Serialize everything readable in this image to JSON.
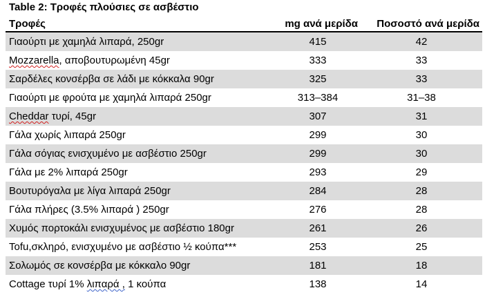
{
  "title": "Table 2: Τροφές πλούσιες σε ασβέστιο",
  "headers": {
    "food": "Τροφές",
    "mg": "mg ανά μερίδα",
    "pct": "Ποσοστό ανά μερίδα"
  },
  "rows": [
    {
      "pre": "Γιαούρτι με χαμηλά λιπαρά, 250gr",
      "mark": "",
      "post": "",
      "mg": "415",
      "pct": "42"
    },
    {
      "pre": "",
      "mark": "Mozzarella",
      "post": ", αποβουτυρωμένη 45gr",
      "mg": "333",
      "pct": "33"
    },
    {
      "pre": "Σαρδέλες κονσέρβα σε λάδι με κόκκαλα  90gr",
      "mark": "",
      "post": "",
      "mg": "325",
      "pct": "33"
    },
    {
      "pre": "Γιαούρτι με φρούτα με χαμηλά λιπαρά 250gr",
      "mark": "",
      "post": "",
      "mg": "313–384",
      "pct": "31–38"
    },
    {
      "pre": "",
      "mark": "Cheddar",
      "post": " τυρί, 45gr",
      "mg": "307",
      "pct": "31"
    },
    {
      "pre": "Γάλα χωρίς λιπαρά 250gr",
      "mark": "",
      "post": "",
      "mg": "299",
      "pct": "30"
    },
    {
      "pre": "Γάλα σόγιας ενισχυμένο με ασβέστιο 250gr",
      "mark": "",
      "post": "",
      "mg": "299",
      "pct": "30"
    },
    {
      "pre": "Γάλα με 2% λιπαρά 250gr",
      "mark": "",
      "post": "",
      "mg": "293",
      "pct": "29"
    },
    {
      "pre": "Βουτυρόγαλα με λίγα λιπαρά 250gr",
      "mark": "",
      "post": "",
      "mg": "284",
      "pct": "28"
    },
    {
      "pre": "Γάλα πλήρες (3.5% λιπαρά ) 250gr",
      "mark": "",
      "post": "",
      "mg": "276",
      "pct": "28"
    },
    {
      "pre": "Χυμός πορτοκάλι ενισχυμένος με ασβέστιο 180gr",
      "mark": "",
      "post": "",
      "mg": "261",
      "pct": "26"
    },
    {
      "pre": "Tofu,σκληρό, ενισχυμένο με ασβέστιο ½ κούπα***",
      "mark": "",
      "post": "",
      "mg": "253",
      "pct": "25"
    },
    {
      "pre": "Σολωμός σε κονσέρβα με κόκκαλο 90gr",
      "mark": "",
      "post": "",
      "mg": "181",
      "pct": "18"
    },
    {
      "pre": "Cottage τυρί 1% ",
      "mark": "λιπαρά ,",
      "post": " 1 κούπα",
      "mg": "138",
      "pct": "14"
    }
  ]
}
